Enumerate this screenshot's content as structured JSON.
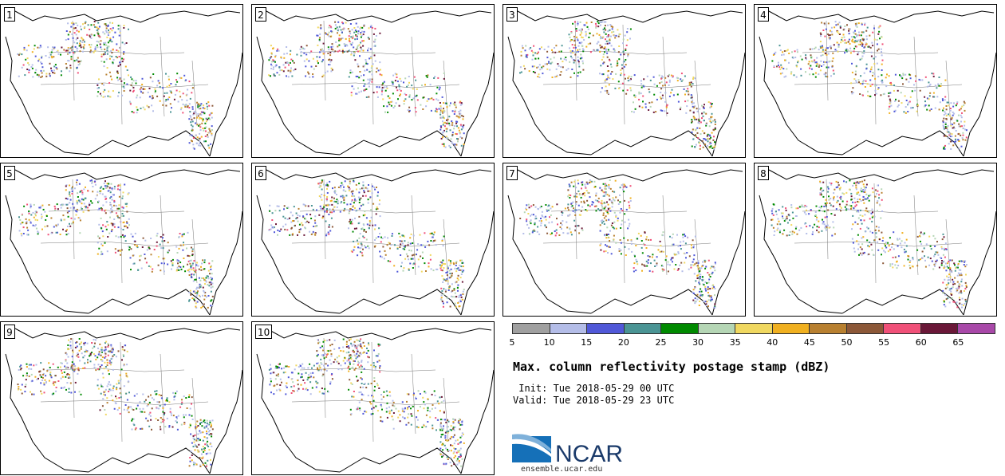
{
  "panels": [
    {
      "label": "1"
    },
    {
      "label": "2"
    },
    {
      "label": "3"
    },
    {
      "label": "4"
    },
    {
      "label": "5"
    },
    {
      "label": "6"
    },
    {
      "label": "7"
    },
    {
      "label": "8"
    },
    {
      "label": "9"
    },
    {
      "label": "10"
    }
  ],
  "colorbar": {
    "colors": [
      "#a0a0a0",
      "#b4bde8",
      "#5058d8",
      "#4a9494",
      "#008a00",
      "#b5d6b5",
      "#f0d860",
      "#f0b020",
      "#b88030",
      "#8c5838",
      "#f05078",
      "#6a1838",
      "#a848a8"
    ],
    "ticks": [
      "5",
      "10",
      "15",
      "20",
      "25",
      "30",
      "35",
      "40",
      "45",
      "50",
      "55",
      "60",
      "65"
    ]
  },
  "title": "Max. column reflectivity postage stamp (dBZ)",
  "init_line": " Init: Tue 2018-05-29 00 UTC",
  "valid_line": "Valid: Tue 2018-05-29 23 UTC",
  "logo": {
    "text": "NCAR",
    "url": "ensemble.ucar.edu"
  }
}
